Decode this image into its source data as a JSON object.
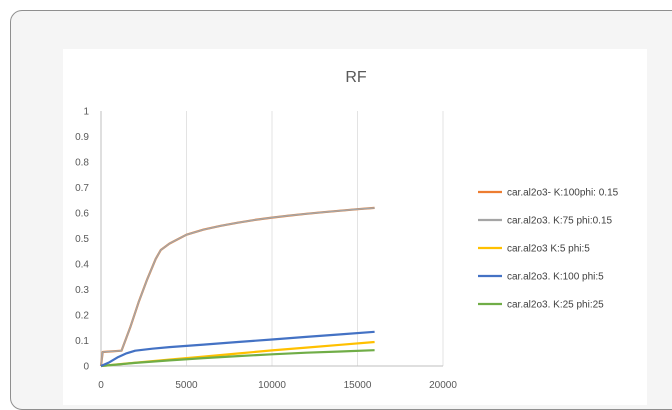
{
  "chart_data": {
    "type": "line",
    "title": "RF",
    "xlabel": "",
    "ylabel": "",
    "xlim": [
      0,
      20000
    ],
    "ylim": [
      0,
      1
    ],
    "x_ticks": [
      0,
      5000,
      10000,
      15000,
      20000
    ],
    "y_ticks": [
      0,
      0.1,
      0.2,
      0.3,
      0.4,
      0.5,
      0.6,
      0.7,
      0.8,
      0.9,
      1
    ],
    "y_tick_labels": [
      "0",
      "0.1",
      "0.2",
      "0.3",
      "0.4",
      "0.5",
      "0.6",
      "0.7",
      "0.8",
      "0.9",
      "1"
    ],
    "grid": "vertical",
    "legend_position": "right",
    "series": [
      {
        "name": "car.al2o3- K:100phi: 0.15",
        "color": "#ed7d31",
        "x": [
          0,
          100,
          1200,
          1700,
          2200,
          2700,
          3200,
          3500,
          4000,
          5000,
          6000,
          7000,
          8000,
          9000,
          10000,
          11000,
          12000,
          13000,
          14000,
          15000,
          16000
        ],
        "y": [
          0,
          0.055,
          0.06,
          0.15,
          0.25,
          0.34,
          0.42,
          0.455,
          0.48,
          0.515,
          0.535,
          0.55,
          0.562,
          0.573,
          0.582,
          0.59,
          0.597,
          0.603,
          0.609,
          0.615,
          0.62
        ]
      },
      {
        "name": "car.al2o3. K:75 phi:0.15",
        "color": "#a5a5a5",
        "x": [
          0,
          100,
          1200,
          1700,
          2200,
          2700,
          3200,
          3500,
          4000,
          5000,
          6000,
          7000,
          8000,
          9000,
          10000,
          11000,
          12000,
          13000,
          14000,
          15000,
          16000
        ],
        "y": [
          0,
          0.055,
          0.06,
          0.15,
          0.25,
          0.34,
          0.42,
          0.455,
          0.48,
          0.515,
          0.535,
          0.55,
          0.562,
          0.573,
          0.582,
          0.59,
          0.597,
          0.603,
          0.609,
          0.615,
          0.62
        ]
      },
      {
        "name": "car.al2o3  K:5 phi:5",
        "color": "#ffc000",
        "x": [
          0,
          2000,
          4000,
          6000,
          8000,
          10000,
          12000,
          14000,
          16000
        ],
        "y": [
          0,
          0.013,
          0.025,
          0.037,
          0.049,
          0.061,
          0.072,
          0.083,
          0.094
        ]
      },
      {
        "name": "car.al2o3. K:100 phi:5",
        "color": "#4472c4",
        "x": [
          0,
          500,
          1000,
          1500,
          2000,
          3000,
          4000,
          6000,
          8000,
          10000,
          12000,
          14000,
          16000
        ],
        "y": [
          0,
          0.015,
          0.035,
          0.05,
          0.06,
          0.068,
          0.074,
          0.084,
          0.094,
          0.104,
          0.114,
          0.124,
          0.134
        ]
      },
      {
        "name": "car.al2o3.  K:25 phi:25",
        "color": "#70ad47",
        "x": [
          0,
          2000,
          4000,
          6000,
          8000,
          10000,
          12000,
          14000,
          16000
        ],
        "y": [
          0,
          0.012,
          0.022,
          0.031,
          0.039,
          0.046,
          0.052,
          0.057,
          0.062
        ]
      }
    ]
  }
}
